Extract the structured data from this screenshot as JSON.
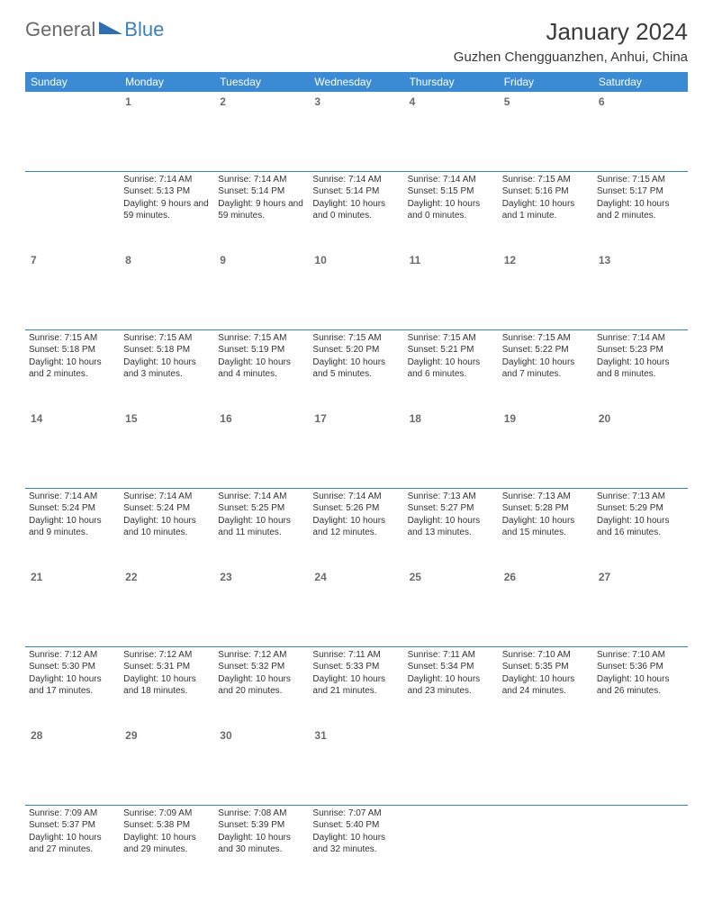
{
  "logo": {
    "text1": "General",
    "text2": "Blue",
    "tri_color": "#2f6fb0"
  },
  "title": "January 2024",
  "location": "Guzhen Chengguanzhen, Anhui, China",
  "colors": {
    "header_bg": "#3b8bd4",
    "header_text": "#ffffff",
    "divider": "#3b7fc4",
    "daynum": "#6a6a6a",
    "body_text": "#333333",
    "background": "#ffffff"
  },
  "font": {
    "title_size": 26,
    "location_size": 15,
    "header_size": 12,
    "daynum_size": 12,
    "body_size": 10
  },
  "weekdays": [
    "Sunday",
    "Monday",
    "Tuesday",
    "Wednesday",
    "Thursday",
    "Friday",
    "Saturday"
  ],
  "weeks": [
    [
      {
        "n": "",
        "t": ""
      },
      {
        "n": "1",
        "t": "Sunrise: 7:14 AM\nSunset: 5:13 PM\nDaylight: 9 hours and 59 minutes."
      },
      {
        "n": "2",
        "t": "Sunrise: 7:14 AM\nSunset: 5:14 PM\nDaylight: 9 hours and 59 minutes."
      },
      {
        "n": "3",
        "t": "Sunrise: 7:14 AM\nSunset: 5:14 PM\nDaylight: 10 hours and 0 minutes."
      },
      {
        "n": "4",
        "t": "Sunrise: 7:14 AM\nSunset: 5:15 PM\nDaylight: 10 hours and 0 minutes."
      },
      {
        "n": "5",
        "t": "Sunrise: 7:15 AM\nSunset: 5:16 PM\nDaylight: 10 hours and 1 minute."
      },
      {
        "n": "6",
        "t": "Sunrise: 7:15 AM\nSunset: 5:17 PM\nDaylight: 10 hours and 2 minutes."
      }
    ],
    [
      {
        "n": "7",
        "t": "Sunrise: 7:15 AM\nSunset: 5:18 PM\nDaylight: 10 hours and 2 minutes."
      },
      {
        "n": "8",
        "t": "Sunrise: 7:15 AM\nSunset: 5:18 PM\nDaylight: 10 hours and 3 minutes."
      },
      {
        "n": "9",
        "t": "Sunrise: 7:15 AM\nSunset: 5:19 PM\nDaylight: 10 hours and 4 minutes."
      },
      {
        "n": "10",
        "t": "Sunrise: 7:15 AM\nSunset: 5:20 PM\nDaylight: 10 hours and 5 minutes."
      },
      {
        "n": "11",
        "t": "Sunrise: 7:15 AM\nSunset: 5:21 PM\nDaylight: 10 hours and 6 minutes."
      },
      {
        "n": "12",
        "t": "Sunrise: 7:15 AM\nSunset: 5:22 PM\nDaylight: 10 hours and 7 minutes."
      },
      {
        "n": "13",
        "t": "Sunrise: 7:14 AM\nSunset: 5:23 PM\nDaylight: 10 hours and 8 minutes."
      }
    ],
    [
      {
        "n": "14",
        "t": "Sunrise: 7:14 AM\nSunset: 5:24 PM\nDaylight: 10 hours and 9 minutes."
      },
      {
        "n": "15",
        "t": "Sunrise: 7:14 AM\nSunset: 5:24 PM\nDaylight: 10 hours and 10 minutes."
      },
      {
        "n": "16",
        "t": "Sunrise: 7:14 AM\nSunset: 5:25 PM\nDaylight: 10 hours and 11 minutes."
      },
      {
        "n": "17",
        "t": "Sunrise: 7:14 AM\nSunset: 5:26 PM\nDaylight: 10 hours and 12 minutes."
      },
      {
        "n": "18",
        "t": "Sunrise: 7:13 AM\nSunset: 5:27 PM\nDaylight: 10 hours and 13 minutes."
      },
      {
        "n": "19",
        "t": "Sunrise: 7:13 AM\nSunset: 5:28 PM\nDaylight: 10 hours and 15 minutes."
      },
      {
        "n": "20",
        "t": "Sunrise: 7:13 AM\nSunset: 5:29 PM\nDaylight: 10 hours and 16 minutes."
      }
    ],
    [
      {
        "n": "21",
        "t": "Sunrise: 7:12 AM\nSunset: 5:30 PM\nDaylight: 10 hours and 17 minutes."
      },
      {
        "n": "22",
        "t": "Sunrise: 7:12 AM\nSunset: 5:31 PM\nDaylight: 10 hours and 18 minutes."
      },
      {
        "n": "23",
        "t": "Sunrise: 7:12 AM\nSunset: 5:32 PM\nDaylight: 10 hours and 20 minutes."
      },
      {
        "n": "24",
        "t": "Sunrise: 7:11 AM\nSunset: 5:33 PM\nDaylight: 10 hours and 21 minutes."
      },
      {
        "n": "25",
        "t": "Sunrise: 7:11 AM\nSunset: 5:34 PM\nDaylight: 10 hours and 23 minutes."
      },
      {
        "n": "26",
        "t": "Sunrise: 7:10 AM\nSunset: 5:35 PM\nDaylight: 10 hours and 24 minutes."
      },
      {
        "n": "27",
        "t": "Sunrise: 7:10 AM\nSunset: 5:36 PM\nDaylight: 10 hours and 26 minutes."
      }
    ],
    [
      {
        "n": "28",
        "t": "Sunrise: 7:09 AM\nSunset: 5:37 PM\nDaylight: 10 hours and 27 minutes."
      },
      {
        "n": "29",
        "t": "Sunrise: 7:09 AM\nSunset: 5:38 PM\nDaylight: 10 hours and 29 minutes."
      },
      {
        "n": "30",
        "t": "Sunrise: 7:08 AM\nSunset: 5:39 PM\nDaylight: 10 hours and 30 minutes."
      },
      {
        "n": "31",
        "t": "Sunrise: 7:07 AM\nSunset: 5:40 PM\nDaylight: 10 hours and 32 minutes."
      },
      {
        "n": "",
        "t": ""
      },
      {
        "n": "",
        "t": ""
      },
      {
        "n": "",
        "t": ""
      }
    ]
  ]
}
